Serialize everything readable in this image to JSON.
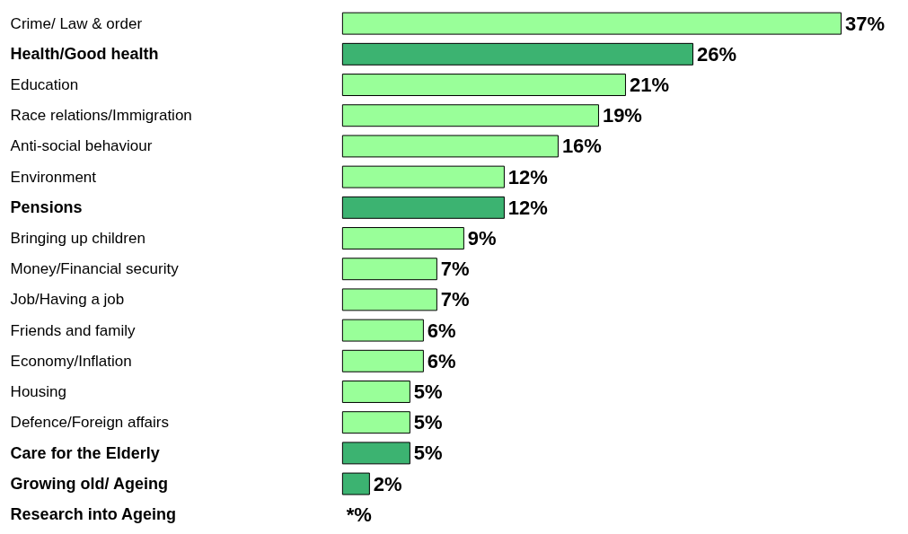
{
  "chart_data": {
    "type": "bar",
    "orientation": "horizontal",
    "categories": [
      "Crime/ Law & order",
      "Health/Good health",
      "Education",
      "Race relations/Immigration",
      "Anti-social behaviour",
      "Environment",
      "Pensions",
      "Bringing up children",
      "Money/Financial security",
      "Job/Having a job",
      "Friends and family",
      "Economy/Inflation",
      "Housing",
      "Defence/Foreign affairs",
      "Care for the Elderly",
      "Growing old/ Ageing",
      "Research into Ageing"
    ],
    "values": [
      37,
      26,
      21,
      19,
      16,
      12,
      12,
      9,
      7,
      7,
      6,
      6,
      5,
      5,
      5,
      2,
      null
    ],
    "colors": [
      "#99ff99",
      "#3cb371",
      "#99ff99",
      "#99ff99",
      "#99ff99",
      "#99ff99",
      "#3cb371",
      "#99ff99",
      "#99ff99",
      "#99ff99",
      "#99ff99",
      "#99ff99",
      "#99ff99",
      "#99ff99",
      "#3cb371",
      "#3cb371",
      "#3cb371"
    ],
    "value_labels": [
      "37%",
      "26%",
      "21%",
      "19%",
      "16%",
      "12%",
      "12%",
      "9%",
      "7%",
      "7%",
      "6%",
      "6%",
      "5%",
      "5%",
      "5%",
      "2%",
      "*%"
    ],
    "tick_labels": false,
    "grid": false
  }
}
